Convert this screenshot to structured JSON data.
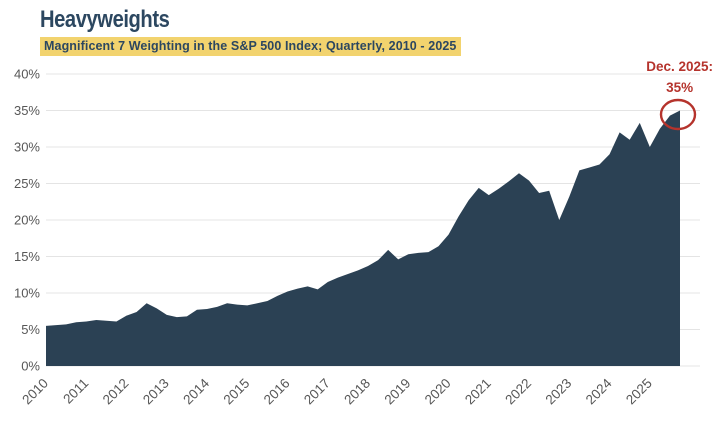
{
  "header": {
    "title": "Heavyweights",
    "subtitle": "Magnificent 7 Weighting in the S&P 500 Index; Quarterly, 2010 - 2025"
  },
  "annotation": {
    "line1": "Dec. 2025:",
    "line2": "35%"
  },
  "colors": {
    "title_text": "#2c4760",
    "subtitle_text": "#2c4760",
    "subtitle_highlight": "#f2d36e",
    "area_fill": "#2b4154",
    "annotation_red": "#b5332c",
    "axis_label": "#575757",
    "gridline": "#e4e4e4"
  },
  "chart_data": {
    "type": "area",
    "title": "Heavyweights",
    "subtitle": "Magnificent 7 Weighting in the S&P 500 Index; Quarterly, 2010 - 2025",
    "x_labels": [
      "2010",
      "2011",
      "2012",
      "2013",
      "2014",
      "2015",
      "2016",
      "2017",
      "2018",
      "2019",
      "2020",
      "2021",
      "2022",
      "2023",
      "2024",
      "2025"
    ],
    "points_per_year": 4,
    "frequency": "quarterly",
    "values": [
      5.5,
      5.6,
      5.7,
      6.0,
      6.1,
      6.3,
      6.2,
      6.1,
      6.9,
      7.4,
      8.6,
      7.9,
      7.0,
      6.7,
      6.8,
      7.7,
      7.8,
      8.1,
      8.6,
      8.4,
      8.3,
      8.6,
      8.9,
      9.6,
      10.2,
      10.6,
      10.9,
      10.5,
      11.5,
      12.1,
      12.6,
      13.1,
      13.7,
      14.5,
      15.9,
      14.6,
      15.3,
      15.5,
      15.6,
      16.4,
      18.0,
      20.5,
      22.7,
      24.4,
      23.4,
      24.3,
      25.3,
      26.4,
      25.4,
      23.7,
      24.0,
      20.0,
      23.2,
      26.8,
      27.2,
      27.6,
      29.0,
      32.0,
      31.0,
      33.3,
      30.0,
      32.5,
      34.3,
      35.0
    ],
    "last_point": {
      "label": "Dec. 2025",
      "value_label": "35%",
      "value": 35.0
    },
    "ylim": [
      0,
      40
    ],
    "ytick_step": 5,
    "ytick_suffix": "%",
    "grid": true,
    "legend": "none"
  }
}
